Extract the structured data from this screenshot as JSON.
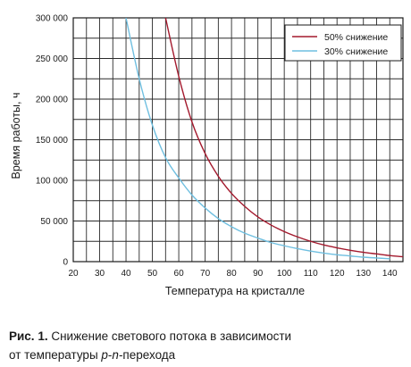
{
  "chart_data": {
    "type": "line",
    "title": "",
    "xlabel": "Температура на кристалле",
    "ylabel": "Время работы, ч",
    "xlim": [
      20,
      145
    ],
    "ylim": [
      0,
      300000
    ],
    "xticks": [
      20,
      30,
      40,
      50,
      60,
      70,
      80,
      90,
      100,
      110,
      120,
      130,
      140
    ],
    "yticks": [
      0,
      50000,
      100000,
      150000,
      200000,
      250000,
      300000
    ],
    "ytick_labels": [
      "0",
      "50 000",
      "100 000",
      "150 000",
      "200 000",
      "250 000",
      "300 000"
    ],
    "grid": true,
    "legend_position": "top-right",
    "series": [
      {
        "name": "50% снижение",
        "color": "#a3192d",
        "x": [
          55,
          60,
          65,
          70,
          75,
          80,
          85,
          90,
          95,
          100,
          105,
          110,
          115,
          120,
          125,
          130,
          135,
          140,
          145
        ],
        "y": [
          300000,
          228000,
          172000,
          133000,
          105000,
          84000,
          68000,
          55000,
          45000,
          37000,
          30500,
          25000,
          20500,
          17000,
          14000,
          11500,
          9500,
          7500,
          6000
        ]
      },
      {
        "name": "30% снижение",
        "color": "#6fbfe0",
        "x": [
          40,
          45,
          50,
          55,
          60,
          65,
          70,
          75,
          80,
          85,
          90,
          95,
          100,
          105,
          110,
          115,
          120,
          125,
          130,
          135,
          140
        ],
        "y": [
          300000,
          225000,
          168000,
          128000,
          103000,
          82000,
          66000,
          53000,
          43000,
          35000,
          29000,
          23500,
          19500,
          16000,
          13000,
          10500,
          8500,
          7000,
          5500,
          4500,
          3500
        ]
      }
    ]
  },
  "caption": {
    "label": "Рис. 1.",
    "text_line1": " Снижение светового потока в зависимости",
    "text_line2_start": "от температуры ",
    "text_line2_italic1": "p",
    "text_line2_dash": "-",
    "text_line2_italic2": "n",
    "text_line2_end": "-перехода"
  }
}
